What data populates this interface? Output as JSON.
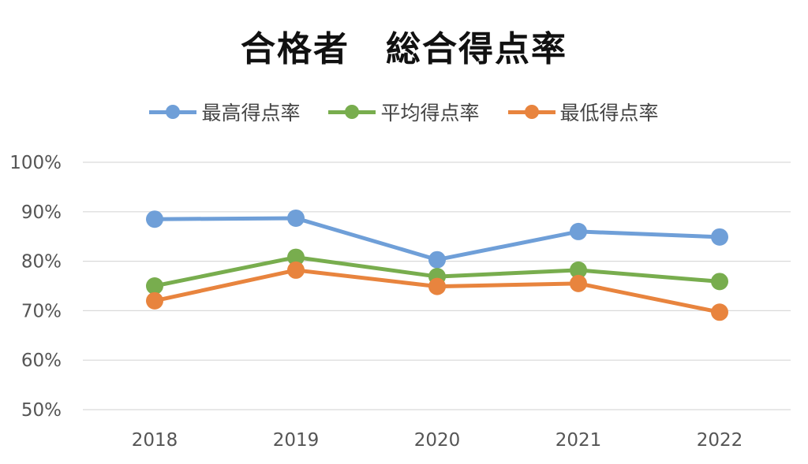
{
  "chart_data": {
    "type": "line",
    "title": "合格者　総合得点率",
    "categories": [
      "2018",
      "2019",
      "2020",
      "2021",
      "2022"
    ],
    "ylim": [
      0.5,
      1.0
    ],
    "yticks": [
      "100%",
      "90%",
      "80%",
      "70%",
      "60%",
      "50%"
    ],
    "ytick_values": [
      1.0,
      0.9,
      0.8,
      0.7,
      0.6,
      0.5
    ],
    "grid": true,
    "legend_position": "top",
    "series": [
      {
        "name": "最高得点率",
        "color": "#6f9fd8",
        "values": [
          0.885,
          0.887,
          0.803,
          0.86,
          0.849
        ]
      },
      {
        "name": "平均得点率",
        "color": "#78ad4e",
        "values": [
          0.75,
          0.808,
          0.769,
          0.782,
          0.759
        ]
      },
      {
        "name": "最低得点率",
        "color": "#e8843e",
        "values": [
          0.72,
          0.782,
          0.749,
          0.755,
          0.697
        ]
      }
    ]
  }
}
